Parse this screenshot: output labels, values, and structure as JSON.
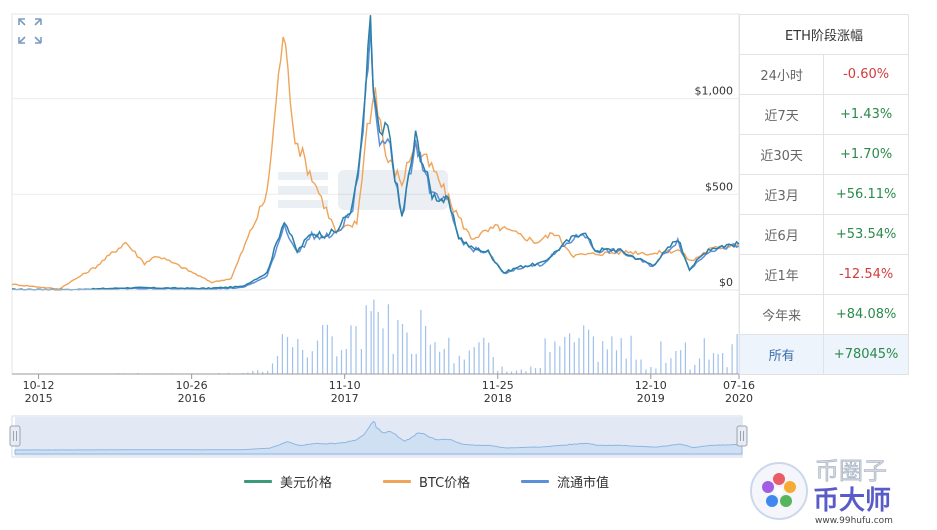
{
  "panel": {
    "title": "ETH阶段涨幅",
    "rows": [
      {
        "label": "24小时",
        "value": "-0.60%",
        "trend": "down"
      },
      {
        "label": "近7天",
        "value": "+1.43%",
        "trend": "up"
      },
      {
        "label": "近30天",
        "value": "+1.70%",
        "trend": "up"
      },
      {
        "label": "近3月",
        "value": "+56.11%",
        "trend": "up"
      },
      {
        "label": "近6月",
        "value": "+53.54%",
        "trend": "up"
      },
      {
        "label": "近1年",
        "value": "-12.54%",
        "trend": "down"
      },
      {
        "label": "今年来",
        "value": "+84.08%",
        "trend": "up"
      },
      {
        "label": "所有",
        "value": "+78045%",
        "trend": "up",
        "active": true
      }
    ]
  },
  "colors": {
    "usd": "#2c7fa8",
    "btc": "#f0a45a",
    "mcap": "#5b8fd8",
    "up": "#2a8a4a",
    "down": "#d23c3c"
  },
  "legend": [
    {
      "name": "美元价格",
      "color": "#3d9a78"
    },
    {
      "name": "BTC价格",
      "color": "#f0a45a"
    },
    {
      "name": "流通市值",
      "color": "#5b8fd8"
    }
  ],
  "watermark": {
    "text1": "币圈子",
    "text2": "币大师",
    "url": "www.99hufu.com"
  },
  "chart_data": {
    "type": "line",
    "x_ticks": [
      {
        "date": "2015-10-12",
        "md": "10-12",
        "year": "2015"
      },
      {
        "date": "2016-10-26",
        "md": "10-26",
        "year": "2016"
      },
      {
        "date": "2017-11-10",
        "md": "11-10",
        "year": "2017"
      },
      {
        "date": "2018-11-25",
        "md": "11-25",
        "year": "2018"
      },
      {
        "date": "2019-12-10",
        "md": "12-10",
        "year": "2019"
      },
      {
        "date": "2020-07-16",
        "md": "07-16",
        "year": "2020"
      }
    ],
    "x_range": [
      "2015-08-07",
      "2020-07-16"
    ],
    "y_ticks": [
      {
        "v": 0,
        "label": "$0"
      },
      {
        "v": 500,
        "label": "$500"
      },
      {
        "v": 1000,
        "label": "$1,000"
      }
    ],
    "y_range": [
      0,
      1400
    ],
    "series": [
      {
        "name": "美元价格",
        "points": [
          [
            "2015-08-07",
            3
          ],
          [
            "2016-01-01",
            1
          ],
          [
            "2016-06-01",
            12
          ],
          [
            "2016-12-01",
            8
          ],
          [
            "2017-03-01",
            18
          ],
          [
            "2017-05-01",
            90
          ],
          [
            "2017-06-13",
            370
          ],
          [
            "2017-07-15",
            200
          ],
          [
            "2017-08-20",
            300
          ],
          [
            "2017-09-15",
            290
          ],
          [
            "2017-10-20",
            305
          ],
          [
            "2017-11-30",
            440
          ],
          [
            "2017-12-20",
            720
          ],
          [
            "2018-01-13",
            1380
          ],
          [
            "2018-01-20",
            1050
          ],
          [
            "2018-02-05",
            790
          ],
          [
            "2018-02-25",
            850
          ],
          [
            "2018-03-15",
            600
          ],
          [
            "2018-04-01",
            380
          ],
          [
            "2018-05-05",
            800
          ],
          [
            "2018-06-15",
            500
          ],
          [
            "2018-07-25",
            460
          ],
          [
            "2018-08-20",
            280
          ],
          [
            "2018-09-20",
            220
          ],
          [
            "2018-11-01",
            200
          ],
          [
            "2018-12-10",
            90
          ],
          [
            "2019-01-15",
            120
          ],
          [
            "2019-03-15",
            140
          ],
          [
            "2019-05-15",
            250
          ],
          [
            "2019-06-25",
            310
          ],
          [
            "2019-07-25",
            210
          ],
          [
            "2019-09-20",
            210
          ],
          [
            "2019-12-15",
            130
          ],
          [
            "2020-02-15",
            270
          ],
          [
            "2020-03-15",
            110
          ],
          [
            "2020-05-01",
            215
          ],
          [
            "2020-06-15",
            235
          ],
          [
            "2020-07-16",
            240
          ]
        ]
      },
      {
        "name": "BTC价格",
        "points": [
          [
            "2015-08-07",
            30
          ],
          [
            "2015-12-01",
            5
          ],
          [
            "2016-03-01",
            120
          ],
          [
            "2016-05-15",
            250
          ],
          [
            "2016-07-01",
            140
          ],
          [
            "2016-08-01",
            180
          ],
          [
            "2016-10-01",
            120
          ],
          [
            "2016-12-15",
            40
          ],
          [
            "2017-02-01",
            60
          ],
          [
            "2017-03-20",
            300
          ],
          [
            "2017-05-01",
            500
          ],
          [
            "2017-06-10",
            1350
          ],
          [
            "2017-07-10",
            800
          ],
          [
            "2017-08-10",
            640
          ],
          [
            "2017-09-01",
            540
          ],
          [
            "2017-10-20",
            300
          ],
          [
            "2017-12-10",
            350
          ],
          [
            "2018-01-05",
            850
          ],
          [
            "2018-01-25",
            1050
          ],
          [
            "2018-02-20",
            700
          ],
          [
            "2018-04-01",
            560
          ],
          [
            "2018-05-01",
            760
          ],
          [
            "2018-06-20",
            620
          ],
          [
            "2018-08-01",
            450
          ],
          [
            "2018-09-20",
            270
          ],
          [
            "2018-11-25",
            330
          ],
          [
            "2019-01-15",
            290
          ],
          [
            "2019-03-01",
            250
          ],
          [
            "2019-04-15",
            300
          ],
          [
            "2019-06-01",
            180
          ],
          [
            "2019-08-01",
            190
          ],
          [
            "2019-10-15",
            200
          ],
          [
            "2019-12-20",
            190
          ],
          [
            "2020-02-15",
            210
          ],
          [
            "2020-03-20",
            150
          ],
          [
            "2020-05-01",
            210
          ],
          [
            "2020-07-16",
            245
          ]
        ]
      },
      {
        "name": "流通市值",
        "points": [
          [
            "2015-08-07",
            2
          ],
          [
            "2016-01-01",
            1
          ],
          [
            "2016-06-01",
            8
          ],
          [
            "2016-12-01",
            5
          ],
          [
            "2017-03-01",
            12
          ],
          [
            "2017-05-01",
            70
          ],
          [
            "2017-06-13",
            340
          ],
          [
            "2017-07-15",
            190
          ],
          [
            "2017-08-20",
            285
          ],
          [
            "2017-09-15",
            275
          ],
          [
            "2017-10-20",
            290
          ],
          [
            "2017-11-30",
            420
          ],
          [
            "2017-12-20",
            700
          ],
          [
            "2018-01-13",
            1360
          ],
          [
            "2018-01-20",
            1030
          ],
          [
            "2018-02-05",
            770
          ],
          [
            "2018-02-25",
            830
          ],
          [
            "2018-03-15",
            590
          ],
          [
            "2018-04-01",
            370
          ],
          [
            "2018-05-05",
            780
          ],
          [
            "2018-06-15",
            490
          ],
          [
            "2018-07-25",
            450
          ],
          [
            "2018-08-20",
            275
          ],
          [
            "2018-09-20",
            215
          ],
          [
            "2018-11-01",
            195
          ],
          [
            "2018-12-10",
            85
          ],
          [
            "2019-01-15",
            115
          ],
          [
            "2019-03-15",
            135
          ],
          [
            "2019-05-15",
            240
          ],
          [
            "2019-06-25",
            300
          ],
          [
            "2019-07-25",
            205
          ],
          [
            "2019-09-20",
            205
          ],
          [
            "2019-12-15",
            125
          ],
          [
            "2020-02-15",
            260
          ],
          [
            "2020-03-15",
            105
          ],
          [
            "2020-05-01",
            205
          ],
          [
            "2020-06-15",
            225
          ],
          [
            "2020-07-16",
            230
          ]
        ]
      }
    ],
    "volume_series": {
      "name": "成交量",
      "relative_max": 1
    }
  }
}
